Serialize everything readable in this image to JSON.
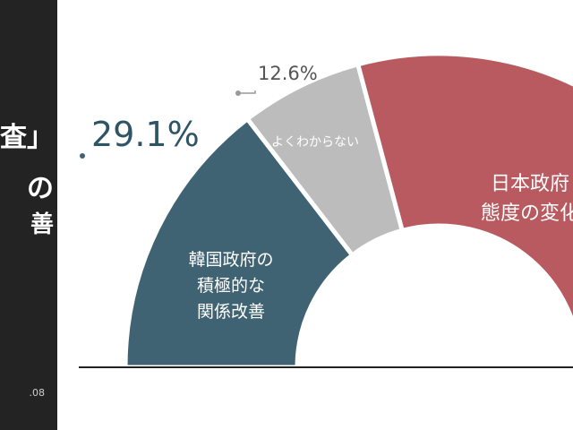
{
  "side_panel": {
    "line1": "査」",
    "line2": "の",
    "line3": "善",
    "date": ".08"
  },
  "chart_data": {
    "type": "pie",
    "title": "",
    "segments": [
      {
        "label_lines": [
          "韓国政府の",
          "積極的な",
          "関係改善"
        ],
        "value": 29.1,
        "value_label": "29.1%",
        "color": "#3f6373"
      },
      {
        "label_lines": [
          "よくわからない"
        ],
        "value": 12.6,
        "value_label": "12.6%",
        "color": "#bcbcbc"
      },
      {
        "label_lines": [
          "日本政府",
          "態度の変化"
        ],
        "value": 58.3,
        "value_label": "",
        "color": "#b85a60"
      }
    ]
  }
}
